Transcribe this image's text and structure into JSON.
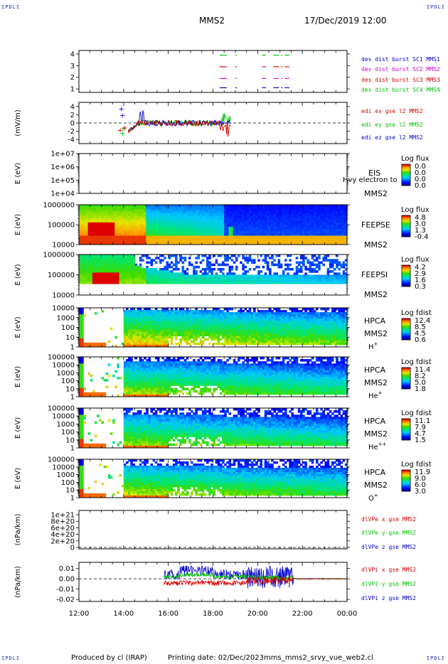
{
  "header": {
    "corner_tag": "IPDLI",
    "mission": "MMS2",
    "datetime": "17/Dec/2019 12:00"
  },
  "footer": {
    "produced_by": "Produced by cl (IRAP)",
    "printing_date": "Printing date: 02/Dec/2023",
    "filename": "mms_mms2_srvy_vue_web2.cl"
  },
  "colors": {
    "red": "#d40000",
    "green": "#00c000",
    "blue": "#0000d0",
    "magenta": "#d000d0",
    "frame": "#000000"
  },
  "chart_data": [
    {
      "type": "line",
      "panel": "burst",
      "ylabel": "",
      "yticks": [
        "1",
        "2",
        "3",
        "4"
      ],
      "ylim": [
        0.7,
        4.3
      ],
      "series": [
        {
          "name": "des dist burst SC1 MMS1",
          "color": "#0000d0",
          "y": 1.1,
          "segments": [
            [
              18.3,
              18.6
            ],
            [
              19.0,
              19.05
            ],
            [
              20.2,
              20.35
            ],
            [
              20.7,
              21.4
            ]
          ]
        },
        {
          "name": "des dist burst SC2 MMS2",
          "color": "#d000d0",
          "y": 1.9,
          "segments": [
            [
              18.3,
              18.6
            ],
            [
              19.0,
              19.05
            ],
            [
              20.2,
              20.35
            ],
            [
              20.7,
              21.4
            ]
          ]
        },
        {
          "name": "des dist burst SC3 MMS3",
          "color": "#d40000",
          "y": 2.9,
          "segments": [
            [
              18.3,
              18.6
            ],
            [
              19.0,
              19.05
            ],
            [
              20.2,
              20.35
            ],
            [
              20.7,
              21.4
            ]
          ]
        },
        {
          "name": "des dist burst SC4 MMS4",
          "color": "#00c000",
          "y": 3.9,
          "segments": [
            [
              18.3,
              18.6
            ],
            [
              19.0,
              19.05
            ],
            [
              20.2,
              20.35
            ],
            [
              20.7,
              21.4
            ]
          ]
        }
      ]
    },
    {
      "type": "line",
      "panel": "edi",
      "ylabel": "(mV/m)",
      "yticks": [
        "-4",
        "-2",
        "0",
        "2",
        "4"
      ],
      "ylim": [
        -5,
        5
      ],
      "series": [
        {
          "name": "edi ex gse l2 MMS2",
          "color": "#d40000"
        },
        {
          "name": "edi ey gse l2 MMS2",
          "color": "#00c000"
        },
        {
          "name": "edi ez gse l2 MMS2",
          "color": "#0000d0"
        }
      ]
    },
    {
      "type": "heatmap",
      "panel": "eis",
      "ylabel": "E (eV)",
      "yticks": [
        "1e+04",
        "1e+05",
        "1e+06",
        "1e+07"
      ],
      "label": "EIS",
      "overlay": "Hvy electron to",
      "spacecraft": "MMS2",
      "cbar_title": "Log flux",
      "cbar_ticks": [
        "0.0",
        "0.0",
        "0.0",
        "0.0"
      ]
    },
    {
      "type": "heatmap",
      "panel": "feepse",
      "ylabel": "E (eV)",
      "yticks": [
        "10000",
        "100000",
        "1000000"
      ],
      "label": "FEEPSE",
      "spacecraft": "MMS2",
      "cbar_title": "Log flux",
      "cbar_ticks": [
        "4.8",
        "3.0",
        "1.3",
        "-0.4"
      ]
    },
    {
      "type": "heatmap",
      "panel": "feepsi",
      "ylabel": "E (eV)",
      "yticks": [
        "10000",
        "100000",
        "1000000"
      ],
      "label": "FEEPSI",
      "spacecraft": "MMS2",
      "cbar_title": "Log flux",
      "cbar_ticks": [
        "4.2",
        "2.9",
        "1.6",
        "0.3"
      ]
    },
    {
      "type": "heatmap",
      "panel": "hpca_h",
      "ylabel": "E (eV)",
      "yticks": [
        "1",
        "10",
        "100",
        "1000",
        "10000"
      ],
      "label": "HPCA",
      "spacecraft": "MMS2",
      "species": "H",
      "species_sup": "+",
      "cbar_title": "Log fdist",
      "cbar_ticks": [
        "12.4",
        "8.5",
        "4.5",
        "0.6"
      ]
    },
    {
      "type": "heatmap",
      "panel": "hpca_he",
      "ylabel": "E (eV)",
      "yticks": [
        "1",
        "10",
        "100",
        "1000",
        "10000",
        "100000"
      ],
      "label": "HPCA",
      "spacecraft": "MMS2",
      "species": "He",
      "species_sup": "+",
      "cbar_title": "Log fdist",
      "cbar_ticks": [
        "11.4",
        "8.2",
        "5.0",
        "1.8"
      ]
    },
    {
      "type": "heatmap",
      "panel": "hpca_he2",
      "ylabel": "E (eV)",
      "yticks": [
        "1",
        "10",
        "100",
        "1000",
        "10000",
        "100000"
      ],
      "label": "HPCA",
      "spacecraft": "MMS2",
      "species": "He",
      "species_sup": "++",
      "cbar_title": "Log fdist",
      "cbar_ticks": [
        "11.1",
        "7.9",
        "4.7",
        "1.5"
      ]
    },
    {
      "type": "heatmap",
      "panel": "hpca_o",
      "ylabel": "E (eV)",
      "yticks": [
        "1",
        "10",
        "100",
        "1000",
        "10000",
        "100000"
      ],
      "label": "HPCA",
      "spacecraft": "MMS2",
      "species": "O",
      "species_sup": "+",
      "cbar_title": "Log fdist",
      "cbar_ticks": [
        "11.9",
        "9.0",
        "6.0",
        "3.0"
      ]
    },
    {
      "type": "line",
      "panel": "dpe",
      "ylabel": "(nPa/km)",
      "yticks": [
        "0",
        "2e+20",
        "4e+20",
        "6e+20",
        "8e+20",
        "1e+21"
      ],
      "series": [
        {
          "name": "dlVPe x gse MMS2",
          "color": "#d40000"
        },
        {
          "name": "dlVPe y gse MMS2",
          "color": "#00c000"
        },
        {
          "name": "dlVPe z gse MMS2",
          "color": "#0000d0"
        }
      ]
    },
    {
      "type": "line",
      "panel": "dpi",
      "ylabel": "(nPa/km)",
      "yticks": [
        "-0.02",
        "-0.01",
        "0.00",
        "0.01"
      ],
      "ylim": [
        -0.022,
        0.016
      ],
      "series": [
        {
          "name": "dlVPi x gse MMS2",
          "color": "#d40000"
        },
        {
          "name": "dlVPi y gse MMS2",
          "color": "#00c000"
        },
        {
          "name": "dlVPi z gse MMS2",
          "color": "#0000d0"
        }
      ]
    }
  ],
  "xaxis": {
    "ticks": [
      "12:00",
      "14:00",
      "16:00",
      "18:00",
      "20:00",
      "22:00",
      "00:00"
    ],
    "xlim": [
      12,
      24
    ]
  }
}
